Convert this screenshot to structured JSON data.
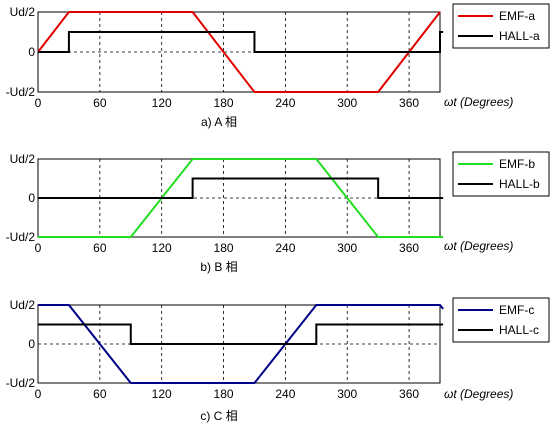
{
  "chart_data": [
    {
      "type": "line",
      "caption": "a) A 相",
      "xlabel": "ωt (Degrees)",
      "xlim": [
        0,
        390
      ],
      "xticks": [
        0,
        60,
        120,
        180,
        240,
        300,
        360
      ],
      "ylim": [
        -1,
        1
      ],
      "yticks": [
        {
          "value": 1,
          "label": "Ud/2"
        },
        {
          "value": 0,
          "label": "0"
        },
        {
          "value": -1,
          "label": "-Ud/2"
        }
      ],
      "grid": true,
      "legend_position": "top-right",
      "series": [
        {
          "name": "EMF-a",
          "color": "#e00000",
          "x": [
            0,
            30,
            150,
            210,
            330,
            390
          ],
          "y": [
            0,
            1,
            1,
            -1,
            -1,
            1
          ]
        },
        {
          "name": "HALL-a",
          "color": "#000000",
          "x": [
            0,
            30,
            30,
            210,
            210,
            390,
            390,
            393
          ],
          "y": [
            0,
            0,
            0.5,
            0.5,
            0,
            0,
            0.5,
            0.5
          ]
        }
      ]
    },
    {
      "type": "line",
      "caption": "b) B 相",
      "xlabel": "ωt (Degrees)",
      "xlim": [
        0,
        390
      ],
      "xticks": [
        0,
        60,
        120,
        180,
        240,
        300,
        360
      ],
      "ylim": [
        -1,
        1
      ],
      "yticks": [
        {
          "value": 1,
          "label": "Ud/2"
        },
        {
          "value": 0,
          "label": "0"
        },
        {
          "value": -1,
          "label": "-Ud/2"
        }
      ],
      "grid": true,
      "legend_position": "top-right",
      "series": [
        {
          "name": "EMF-b",
          "color": "#22dd22",
          "x": [
            0,
            90,
            150,
            270,
            330,
            393
          ],
          "y": [
            -1,
            -1,
            1,
            1,
            -1,
            -1
          ]
        },
        {
          "name": "HALL-b",
          "color": "#000000",
          "x": [
            0,
            150,
            150,
            330,
            330,
            393
          ],
          "y": [
            0,
            0,
            0.5,
            0.5,
            0,
            0
          ]
        }
      ]
    },
    {
      "type": "line",
      "caption": "c) C 相",
      "xlabel": "ωt (Degrees)",
      "xlim": [
        0,
        390
      ],
      "xticks": [
        0,
        60,
        120,
        180,
        240,
        300,
        360
      ],
      "ylim": [
        -1,
        1
      ],
      "yticks": [
        {
          "value": 1,
          "label": "Ud/2"
        },
        {
          "value": 0,
          "label": "0"
        },
        {
          "value": -1,
          "label": "-Ud/2"
        }
      ],
      "grid": true,
      "legend_position": "top-right",
      "series": [
        {
          "name": "EMF-c",
          "color": "#000088",
          "x": [
            0,
            30,
            90,
            210,
            270,
            390,
            393
          ],
          "y": [
            1,
            1,
            -1,
            -1,
            1,
            1,
            0.9
          ]
        },
        {
          "name": "HALL-c",
          "color": "#000000",
          "x": [
            0,
            90,
            90,
            270,
            270,
            393
          ],
          "y": [
            0.5,
            0.5,
            0,
            0,
            0.5,
            0.5
          ]
        }
      ]
    }
  ]
}
